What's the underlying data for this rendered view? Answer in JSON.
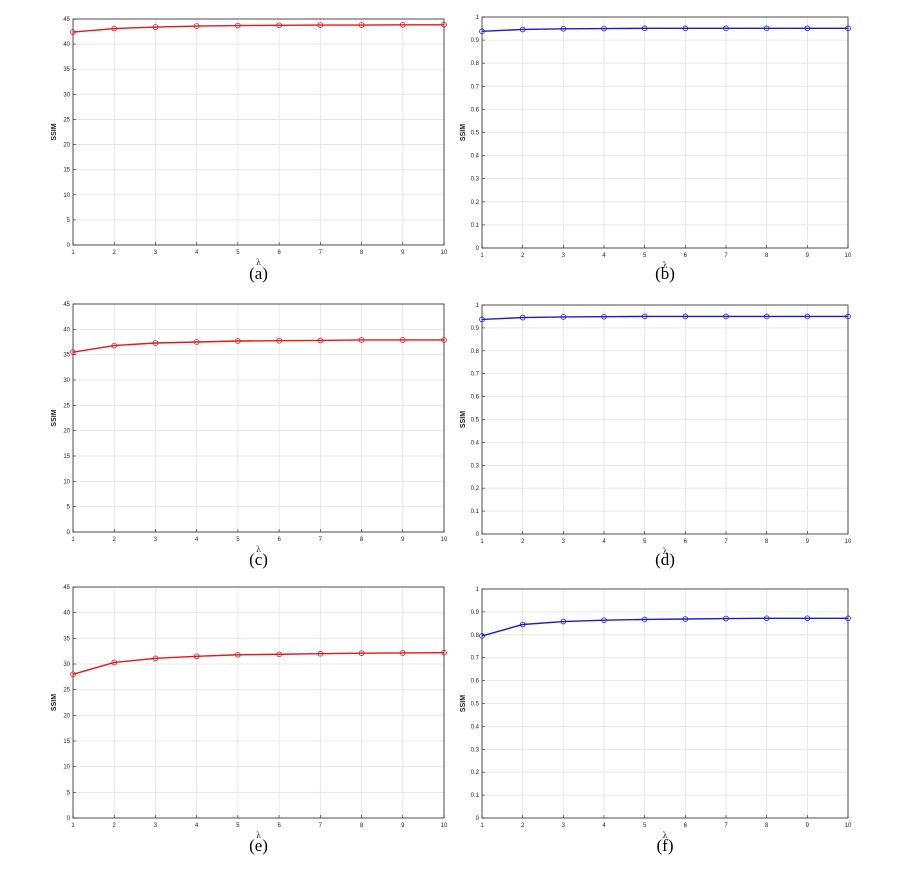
{
  "chart_data": [
    {
      "type": "line",
      "caption": "(a)",
      "xlabel": "λ",
      "ylabel": "SSIM",
      "xlim": [
        1,
        10
      ],
      "ylim": [
        0,
        45
      ],
      "xticks": [
        "1",
        "2",
        "3",
        "4",
        "5",
        "6",
        "7",
        "8",
        "9",
        "10"
      ],
      "yticks": [
        "0",
        "5",
        "10",
        "15",
        "20",
        "25",
        "30",
        "35",
        "40",
        "45"
      ],
      "grid": true,
      "color": "#e8161b",
      "marker": "circle",
      "series": [
        {
          "x": [
            1,
            2,
            3,
            4,
            5,
            6,
            7,
            8,
            9,
            10
          ],
          "values": [
            42.4,
            43.1,
            43.4,
            43.6,
            43.7,
            43.75,
            43.8,
            43.8,
            43.85,
            43.85
          ]
        }
      ]
    },
    {
      "type": "line",
      "caption": "(b)",
      "xlabel": "λ",
      "ylabel": "SSIM",
      "xlim": [
        1,
        10
      ],
      "ylim": [
        0,
        1
      ],
      "xticks": [
        "1",
        "2",
        "3",
        "4",
        "5",
        "6",
        "7",
        "8",
        "9",
        "10"
      ],
      "yticks": [
        "0",
        "0.1",
        "0.2",
        "0.3",
        "0.4",
        "0.5",
        "0.6",
        "0.7",
        "0.8",
        "0.9",
        "1"
      ],
      "grid": true,
      "color": "#1b1bd6",
      "marker": "circle",
      "series": [
        {
          "x": [
            1,
            2,
            3,
            4,
            5,
            6,
            7,
            8,
            9,
            10
          ],
          "values": [
            0.938,
            0.946,
            0.949,
            0.95,
            0.951,
            0.951,
            0.951,
            0.951,
            0.951,
            0.951
          ]
        }
      ]
    },
    {
      "type": "line",
      "caption": "(c)",
      "xlabel": "λ",
      "ylabel": "SSIM",
      "xlim": [
        1,
        10
      ],
      "ylim": [
        0,
        45
      ],
      "xticks": [
        "1",
        "2",
        "3",
        "4",
        "5",
        "6",
        "7",
        "8",
        "9",
        "10"
      ],
      "yticks": [
        "0",
        "5",
        "10",
        "15",
        "20",
        "25",
        "30",
        "35",
        "40",
        "45"
      ],
      "grid": true,
      "color": "#e8161b",
      "marker": "circle",
      "series": [
        {
          "x": [
            1,
            2,
            3,
            4,
            5,
            6,
            7,
            8,
            9,
            10
          ],
          "values": [
            35.5,
            36.8,
            37.3,
            37.5,
            37.7,
            37.75,
            37.8,
            37.9,
            37.9,
            37.9
          ]
        }
      ]
    },
    {
      "type": "line",
      "caption": "(d)",
      "xlabel": "λ",
      "ylabel": "SSIM",
      "xlim": [
        1,
        10
      ],
      "ylim": [
        0,
        1
      ],
      "xticks": [
        "1",
        "2",
        "3",
        "4",
        "5",
        "6",
        "7",
        "8",
        "9",
        "10"
      ],
      "yticks": [
        "0",
        "0.1",
        "0.2",
        "0.3",
        "0.4",
        "0.5",
        "0.6",
        "0.7",
        "0.8",
        "0.9",
        "1"
      ],
      "grid": true,
      "color": "#1b1bd6",
      "marker": "circle",
      "series": [
        {
          "x": [
            1,
            2,
            3,
            4,
            5,
            6,
            7,
            8,
            9,
            10
          ],
          "values": [
            0.937,
            0.945,
            0.948,
            0.949,
            0.95,
            0.95,
            0.95,
            0.95,
            0.95,
            0.95
          ]
        }
      ]
    },
    {
      "type": "line",
      "caption": "(e)",
      "xlabel": "λ",
      "ylabel": "SSIM",
      "xlim": [
        1,
        10
      ],
      "ylim": [
        0,
        45
      ],
      "xticks": [
        "1",
        "2",
        "3",
        "4",
        "5",
        "6",
        "7",
        "8",
        "9",
        "10"
      ],
      "yticks": [
        "0",
        "5",
        "10",
        "15",
        "20",
        "25",
        "30",
        "35",
        "40",
        "45"
      ],
      "grid": true,
      "color": "#e8161b",
      "marker": "circle",
      "series": [
        {
          "x": [
            1,
            2,
            3,
            4,
            5,
            6,
            7,
            8,
            9,
            10
          ],
          "values": [
            28.0,
            30.3,
            31.1,
            31.5,
            31.8,
            31.9,
            32.0,
            32.1,
            32.15,
            32.2
          ]
        }
      ]
    },
    {
      "type": "line",
      "caption": "(f)",
      "xlabel": "λ",
      "ylabel": "SSIM",
      "xlim": [
        1,
        10
      ],
      "ylim": [
        0,
        1
      ],
      "xticks": [
        "1",
        "2",
        "3",
        "4",
        "5",
        "6",
        "7",
        "8",
        "9",
        "10"
      ],
      "yticks": [
        "0",
        "0.1",
        "0.2",
        "0.3",
        "0.4",
        "0.5",
        "0.6",
        "0.7",
        "0.8",
        "0.9",
        "1"
      ],
      "grid": true,
      "color": "#1b1bd6",
      "marker": "circle",
      "series": [
        {
          "x": [
            1,
            2,
            3,
            4,
            5,
            6,
            7,
            8,
            9,
            10
          ],
          "values": [
            0.795,
            0.845,
            0.858,
            0.864,
            0.867,
            0.869,
            0.871,
            0.872,
            0.872,
            0.872
          ]
        }
      ]
    }
  ]
}
